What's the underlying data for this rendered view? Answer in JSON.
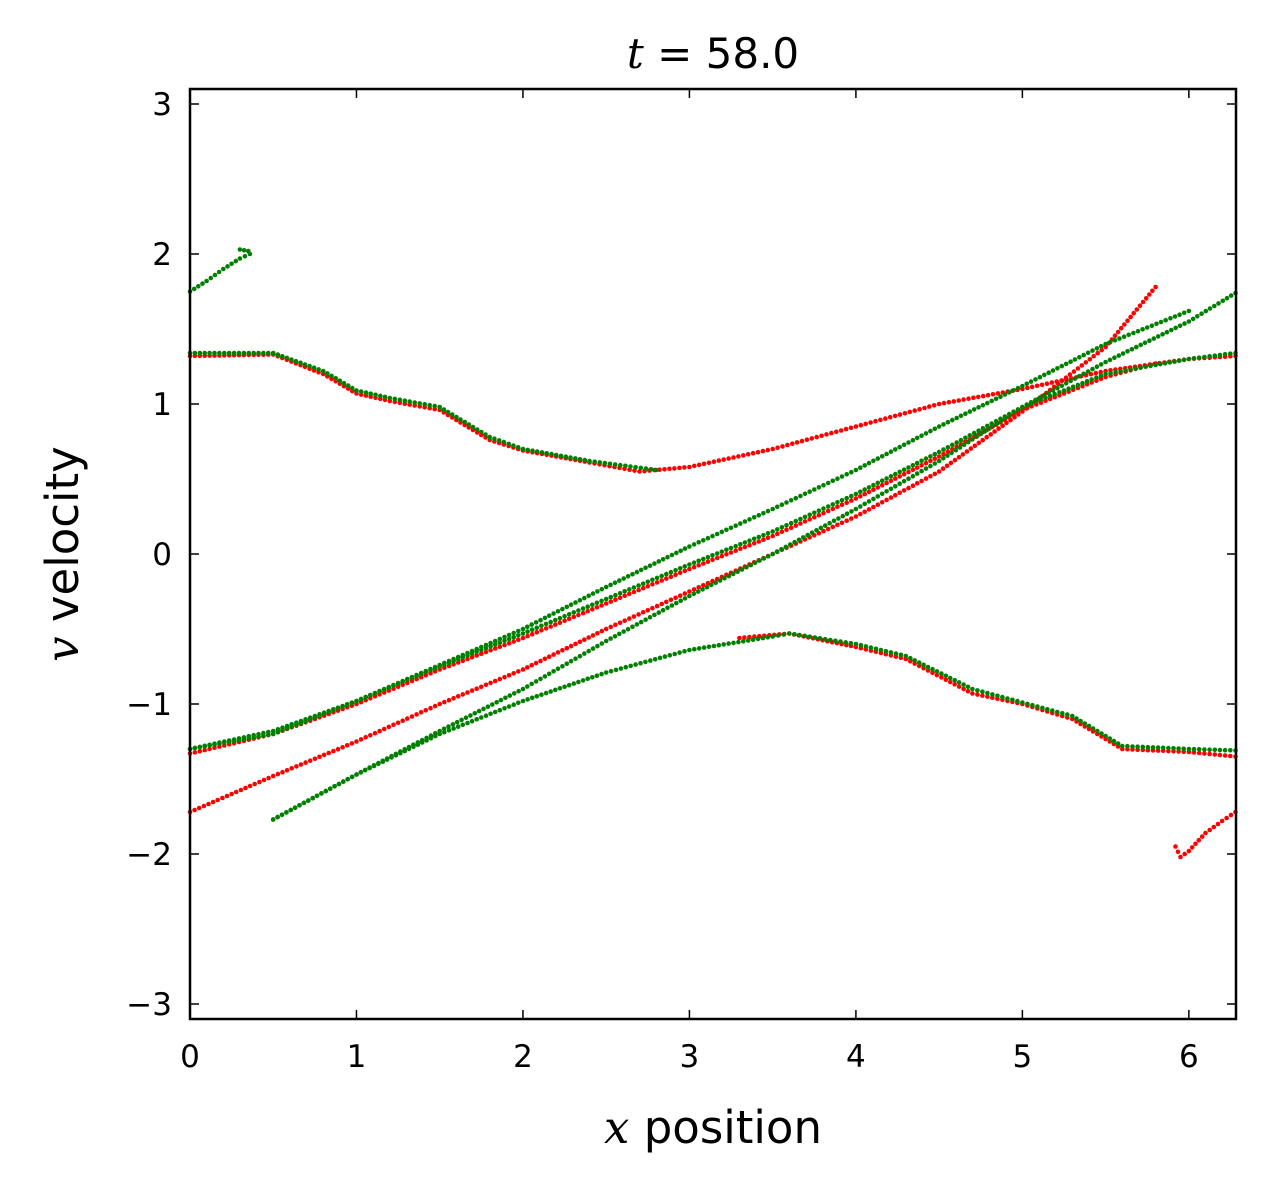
{
  "chart_data": {
    "type": "scatter",
    "title": {
      "var": "t",
      "eq": " = ",
      "value": "58.0"
    },
    "xlabel": {
      "var": "x",
      "text": " position"
    },
    "ylabel": {
      "var": "v",
      "text": " velocity"
    },
    "xlim": [
      0,
      6.2832
    ],
    "ylim": [
      -3.1,
      3.1
    ],
    "xticks": [
      0,
      1,
      2,
      3,
      4,
      5,
      6
    ],
    "yticks": [
      -3,
      -2,
      -1,
      0,
      1,
      2,
      3
    ],
    "xtick_labels": [
      "0",
      "1",
      "2",
      "3",
      "4",
      "5",
      "6"
    ],
    "ytick_labels": [
      "−3",
      "−2",
      "−1",
      "0",
      "1",
      "2",
      "3"
    ],
    "grid": false,
    "series": [
      {
        "color": "#ff0000",
        "branches": [
          {
            "x": [
              0.0,
              0.5,
              0.8,
              1.0,
              1.2,
              1.5,
              1.8,
              2.0,
              2.4,
              2.7,
              3.0,
              3.5,
              4.0,
              4.5,
              5.0,
              5.5,
              6.0,
              6.28
            ],
            "y": [
              1.32,
              1.33,
              1.2,
              1.07,
              1.02,
              0.96,
              0.76,
              0.69,
              0.61,
              0.55,
              0.58,
              0.7,
              0.85,
              1.0,
              1.1,
              1.22,
              1.3,
              1.32
            ]
          },
          {
            "x": [
              0.0,
              0.5,
              1.0,
              1.5,
              2.0,
              2.5,
              3.0,
              3.5,
              4.0,
              4.5,
              5.0,
              5.5,
              5.8
            ],
            "y": [
              -1.72,
              -1.48,
              -1.25,
              -1.0,
              -0.77,
              -0.5,
              -0.25,
              0.0,
              0.25,
              0.55,
              0.95,
              1.38,
              1.78
            ]
          },
          {
            "x": [
              0.0,
              0.5,
              1.0,
              1.5,
              2.0,
              2.5,
              3.0,
              3.5,
              4.0,
              4.5,
              5.0,
              5.5,
              5.8
            ],
            "y": [
              -1.33,
              -1.2,
              -1.0,
              -0.77,
              -0.56,
              -0.33,
              -0.1,
              0.12,
              0.37,
              0.65,
              0.96,
              1.18,
              1.27
            ]
          },
          {
            "x": [
              3.3,
              3.6,
              4.0,
              4.3,
              4.7,
              5.0,
              5.3,
              5.6,
              6.0,
              6.28
            ],
            "y": [
              -0.56,
              -0.53,
              -0.62,
              -0.7,
              -0.93,
              -1.0,
              -1.1,
              -1.3,
              -1.32,
              -1.35
            ]
          },
          {
            "x": [
              5.92,
              5.95,
              6.0,
              6.1,
              6.2,
              6.28
            ],
            "y": [
              -1.95,
              -2.02,
              -1.98,
              -1.86,
              -1.78,
              -1.72
            ]
          }
        ]
      },
      {
        "color": "#008000",
        "branches": [
          {
            "x": [
              0.0,
              0.1,
              0.2,
              0.3,
              0.36,
              0.35,
              0.3
            ],
            "y": [
              1.75,
              1.82,
              1.9,
              1.97,
              2.0,
              2.02,
              2.03
            ]
          },
          {
            "x": [
              0.0,
              0.5,
              0.8,
              1.0,
              1.2,
              1.5,
              1.8,
              2.0,
              2.4,
              2.8
            ],
            "y": [
              1.34,
              1.34,
              1.22,
              1.09,
              1.04,
              0.98,
              0.78,
              0.7,
              0.62,
              0.56
            ]
          },
          {
            "x": [
              0.0,
              0.5,
              1.0,
              1.5,
              2.0,
              2.5,
              3.0,
              3.5,
              4.0,
              4.5,
              5.0,
              5.5,
              5.8,
              6.0,
              6.28
            ],
            "y": [
              -1.3,
              -1.2,
              -0.98,
              -0.75,
              -0.53,
              -0.3,
              -0.07,
              0.15,
              0.4,
              0.68,
              0.98,
              1.2,
              1.26,
              1.3,
              1.34
            ]
          },
          {
            "x": [
              0.5,
              1.0,
              1.5,
              2.0,
              2.5,
              3.0,
              3.5,
              4.0,
              4.5,
              5.0,
              5.5,
              6.0,
              6.28
            ],
            "y": [
              -1.77,
              -1.47,
              -1.18,
              -0.9,
              -0.58,
              -0.28,
              0.0,
              0.3,
              0.62,
              0.98,
              1.28,
              1.55,
              1.74
            ]
          },
          {
            "x": [
              0.0,
              0.5,
              1.0,
              1.5,
              2.0,
              2.5,
              3.0,
              3.5,
              4.0,
              4.5,
              5.0,
              5.5,
              6.0
            ],
            "y": [
              -1.3,
              -1.18,
              -0.98,
              -0.74,
              -0.5,
              -0.22,
              0.05,
              0.3,
              0.56,
              0.85,
              1.12,
              1.4,
              1.62
            ]
          },
          {
            "x": [
              0.5,
              1.0,
              1.5,
              2.0,
              2.5,
              3.0,
              3.5,
              3.6,
              4.0,
              4.3,
              4.7,
              5.0,
              5.3,
              5.6,
              6.0,
              6.28
            ],
            "y": [
              -1.77,
              -1.47,
              -1.2,
              -0.98,
              -0.79,
              -0.64,
              -0.55,
              -0.53,
              -0.6,
              -0.68,
              -0.9,
              -0.99,
              -1.08,
              -1.28,
              -1.3,
              -1.31
            ]
          }
        ]
      }
    ]
  }
}
